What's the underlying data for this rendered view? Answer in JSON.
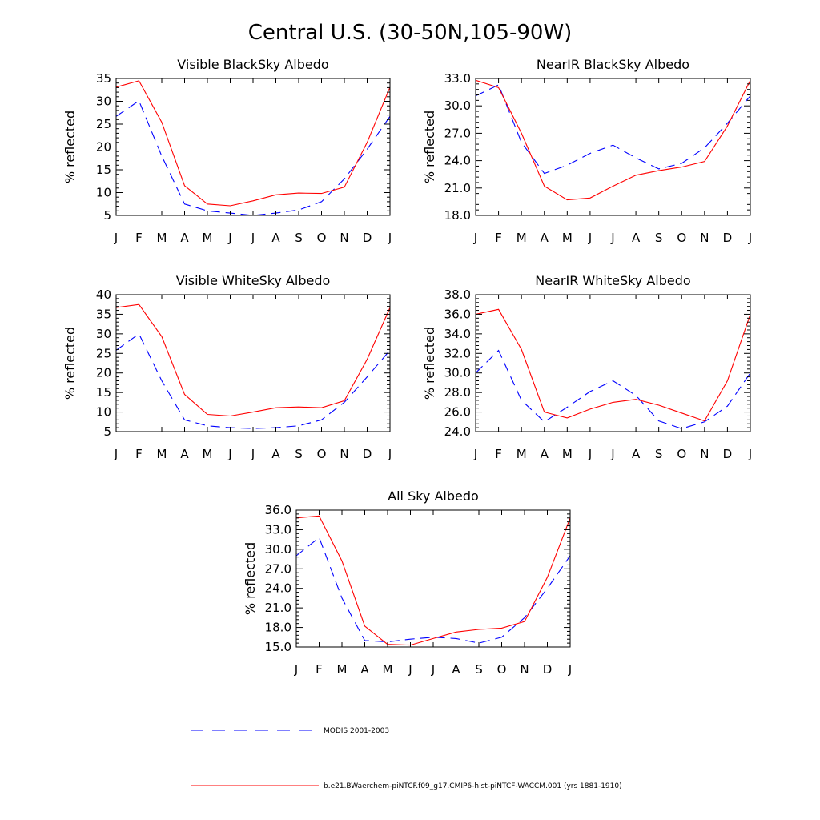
{
  "title": "Central U.S. (30-50N,105-90W)",
  "legend": [
    {
      "name": "MODIS 2001-2003",
      "color": "#0000ff",
      "dash": "dashed"
    },
    {
      "name": "b.e21.BWaerchem-piNTCF.f09_g17.CMIP6-hist-piNTCF-WACCM.001 (yrs 1881-1910)",
      "color": "#ff0000",
      "dash": "solid"
    }
  ],
  "chart_data": [
    {
      "type": "line",
      "title": "Visible BlackSky Albedo",
      "ylabel": "% reflected",
      "x": [
        "J",
        "F",
        "M",
        "A",
        "M",
        "J",
        "J",
        "A",
        "S",
        "O",
        "N",
        "D",
        "J"
      ],
      "ylim": [
        5,
        35
      ],
      "yticks": [
        "5",
        "10",
        "15",
        "20",
        "25",
        "30",
        "35"
      ],
      "series": [
        {
          "name": "MODIS 2001-2003",
          "values": [
            26.7,
            30.1,
            18.0,
            7.5,
            6.0,
            5.5,
            5.0,
            5.5,
            6.2,
            8.0,
            13.0,
            19.5,
            26.7
          ]
        },
        {
          "name": "b.e21.BWaerchem-piNTCF.f09_g17.CMIP6-hist-piNTCF-WACCM.001 (yrs 1881-1910)",
          "values": [
            33.1,
            34.5,
            25.4,
            11.5,
            7.5,
            7.1,
            8.2,
            9.5,
            9.9,
            9.8,
            11.2,
            21.0,
            33.1
          ]
        }
      ]
    },
    {
      "type": "line",
      "title": "NearIR BlackSky Albedo",
      "ylabel": "% reflected",
      "x": [
        "J",
        "F",
        "M",
        "A",
        "M",
        "J",
        "J",
        "A",
        "S",
        "O",
        "N",
        "D",
        "J"
      ],
      "ylim": [
        18.0,
        33.0
      ],
      "yticks": [
        "18.0",
        "21.0",
        "24.0",
        "27.0",
        "30.0",
        "33.0"
      ],
      "series": [
        {
          "name": "MODIS 2001-2003",
          "values": [
            31.1,
            32.3,
            26.0,
            22.6,
            23.5,
            24.8,
            25.7,
            24.3,
            23.1,
            23.7,
            25.4,
            28.1,
            31.1
          ]
        },
        {
          "name": "b.e21.BWaerchem-piNTCF.f09_g17.CMIP6-hist-piNTCF-WACCM.001 (yrs 1881-1910)",
          "values": [
            32.8,
            32.0,
            27.0,
            21.2,
            19.7,
            19.9,
            21.2,
            22.4,
            22.9,
            23.3,
            23.9,
            27.8,
            32.8
          ]
        }
      ]
    },
    {
      "type": "line",
      "title": "Visible WhiteSky Albedo",
      "ylabel": "% reflected",
      "x": [
        "J",
        "F",
        "M",
        "A",
        "M",
        "J",
        "J",
        "A",
        "S",
        "O",
        "N",
        "D",
        "J"
      ],
      "ylim": [
        5,
        40
      ],
      "yticks": [
        "5",
        "10",
        "15",
        "20",
        "25",
        "30",
        "35",
        "40"
      ],
      "series": [
        {
          "name": "MODIS 2001-2003",
          "values": [
            25.8,
            30.0,
            18.0,
            8.0,
            6.5,
            6.0,
            5.8,
            6.0,
            6.5,
            8.0,
            12.5,
            19.0,
            25.8
          ]
        },
        {
          "name": "b.e21.BWaerchem-piNTCF.f09_g17.CMIP6-hist-piNTCF-WACCM.001 (yrs 1881-1910)",
          "values": [
            36.7,
            37.5,
            29.3,
            14.5,
            9.4,
            9.0,
            10.0,
            11.1,
            11.3,
            11.1,
            12.9,
            23.5,
            36.7
          ]
        }
      ]
    },
    {
      "type": "line",
      "title": "NearIR WhiteSky Albedo",
      "ylabel": "% reflected",
      "x": [
        "J",
        "F",
        "M",
        "A",
        "M",
        "J",
        "J",
        "A",
        "S",
        "O",
        "N",
        "D",
        "J"
      ],
      "ylim": [
        24.0,
        38.0
      ],
      "yticks": [
        "24.0",
        "26.0",
        "28.0",
        "30.0",
        "32.0",
        "34.0",
        "36.0",
        "38.0"
      ],
      "series": [
        {
          "name": "MODIS 2001-2003",
          "values": [
            30.0,
            32.3,
            27.2,
            25.0,
            26.5,
            28.1,
            29.2,
            27.7,
            25.1,
            24.3,
            25.0,
            26.6,
            30.0
          ]
        },
        {
          "name": "b.e21.BWaerchem-piNTCF.f09_g17.CMIP6-hist-piNTCF-WACCM.001 (yrs 1881-1910)",
          "values": [
            36.0,
            36.5,
            32.4,
            26.0,
            25.4,
            26.3,
            27.0,
            27.3,
            26.7,
            25.9,
            25.1,
            29.2,
            36.0
          ]
        }
      ]
    },
    {
      "type": "line",
      "title": "All Sky Albedo",
      "ylabel": "% reflected",
      "x": [
        "J",
        "F",
        "M",
        "A",
        "M",
        "J",
        "J",
        "A",
        "S",
        "O",
        "N",
        "D",
        "J"
      ],
      "ylim": [
        15.0,
        36.0
      ],
      "yticks": [
        "15.0",
        "18.0",
        "21.0",
        "24.0",
        "27.0",
        "30.0",
        "33.0",
        "36.0"
      ],
      "series": [
        {
          "name": "MODIS 2001-2003",
          "values": [
            29.0,
            31.8,
            22.5,
            16.0,
            15.8,
            16.2,
            16.5,
            16.3,
            15.6,
            16.5,
            19.5,
            24.0,
            29.0
          ]
        },
        {
          "name": "b.e21.BWaerchem-piNTCF.f09_g17.CMIP6-hist-piNTCF-WACCM.001 (yrs 1881-1910)",
          "values": [
            34.8,
            35.1,
            28.2,
            18.2,
            15.4,
            15.3,
            16.3,
            17.3,
            17.7,
            17.9,
            18.9,
            25.7,
            34.8
          ]
        }
      ]
    }
  ]
}
